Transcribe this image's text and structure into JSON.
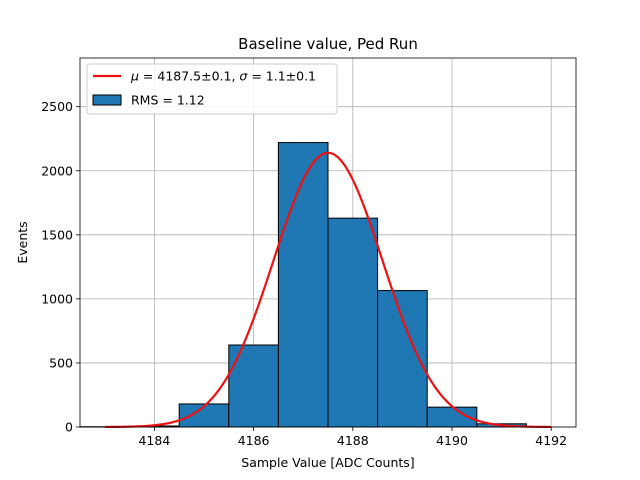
{
  "chart_data": {
    "type": "bar",
    "title": "Baseline value, Ped Run",
    "xlabel": "Sample Value [ADC Counts]",
    "ylabel": "Events",
    "xlim": [
      4182.5,
      4192.5
    ],
    "ylim": [
      0,
      2880
    ],
    "grid": true,
    "xticks": [
      4184,
      4186,
      4188,
      4190,
      4192
    ],
    "yticks": [
      0,
      500,
      1000,
      1500,
      2000,
      2500
    ],
    "histogram": {
      "name": "RMS = 1.12",
      "bin_edges": [
        4182.5,
        4183.5,
        4184.5,
        4185.5,
        4186.5,
        4187.5,
        4188.5,
        4189.5,
        4190.5,
        4191.5
      ],
      "counts": [
        2,
        8,
        180,
        640,
        2220,
        1630,
        1065,
        155,
        25
      ],
      "color": "#1f77b4"
    },
    "fit": {
      "name_math_mu": "μ",
      "name_mu_text": " = 4187.5±0.1, ",
      "name_math_sigma": "σ",
      "name_sigma_text": " = 1.1±0.1",
      "type": "gaussian",
      "mu": 4187.5,
      "sigma": 1.1,
      "amplitude": 2140,
      "x_range": [
        4183,
        4192
      ],
      "color": "#ee1111"
    },
    "legend_position": "top-left"
  }
}
